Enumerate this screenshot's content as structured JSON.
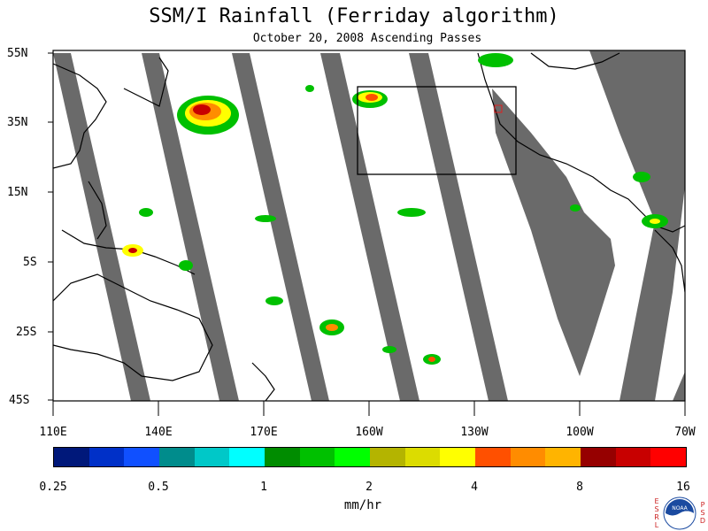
{
  "title": "SSM/I Rainfall (Ferriday algorithm)",
  "subtitle": "October 20, 2008  Ascending Passes",
  "lat_labels": [
    "55N",
    "35N",
    "15N",
    "5S",
    "25S",
    "45S"
  ],
  "lon_labels": [
    "110E",
    "140E",
    "170E",
    "160W",
    "130W",
    "100W",
    "70W"
  ],
  "colorbar": {
    "ticks": [
      "0.25",
      "0.5",
      "1",
      "2",
      "4",
      "8",
      "16"
    ],
    "units": "mm/hr",
    "colors": [
      "#00187a",
      "#0030c8",
      "#1050ff",
      "#008c8c",
      "#00c8c8",
      "#00ffff",
      "#008c00",
      "#00c000",
      "#00ff00",
      "#b4b400",
      "#dcdc00",
      "#ffff00",
      "#ff5000",
      "#ff8c00",
      "#ffb400",
      "#960000",
      "#c80000",
      "#ff0000"
    ]
  },
  "colors": {
    "swath_gap": "#6a6a6a",
    "coastline": "#000000",
    "box": "#000000",
    "red_box": "#e02020"
  },
  "logo": {
    "left_letters": [
      "E",
      "S",
      "R",
      "L"
    ],
    "right_letters": [
      "P",
      "S",
      "D"
    ],
    "emblem_text": "NOAA"
  }
}
